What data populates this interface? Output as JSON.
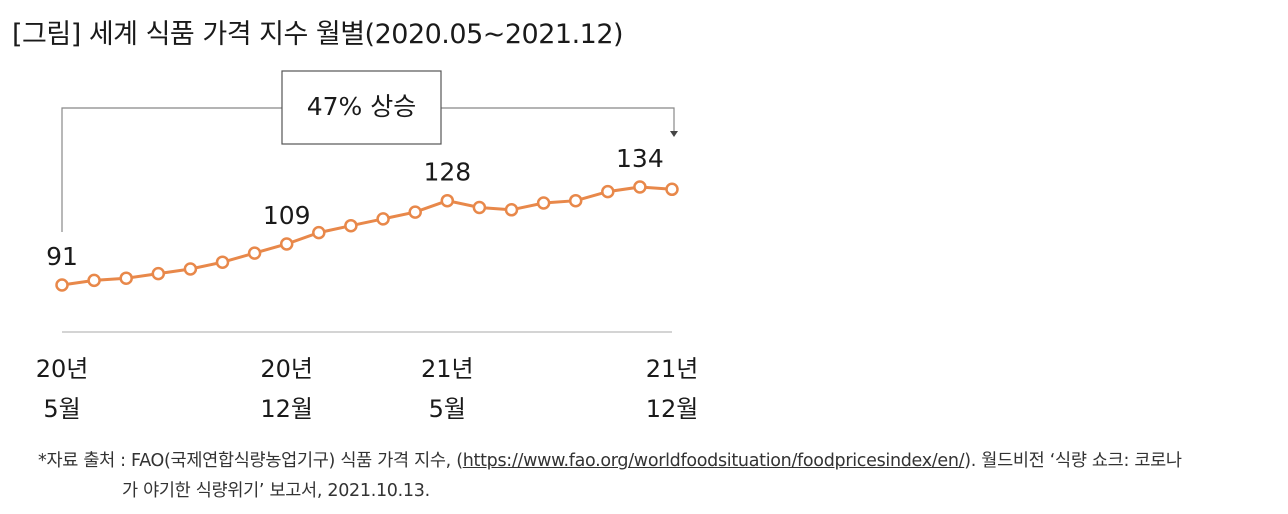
{
  "title": "[그림] 세계 식품 가격 지수 월별(2020.05~2021.12)",
  "annotation": "47% 상승",
  "chart_data": {
    "type": "line",
    "x": [
      "2020-05",
      "2020-06",
      "2020-07",
      "2020-08",
      "2020-09",
      "2020-10",
      "2020-11",
      "2020-12",
      "2021-01",
      "2021-02",
      "2021-03",
      "2021-04",
      "2021-05",
      "2021-06",
      "2021-07",
      "2021-08",
      "2021-09",
      "2021-10",
      "2021-11",
      "2021-12"
    ],
    "values": [
      91,
      93,
      94,
      96,
      98,
      101,
      105,
      109,
      114,
      117,
      120,
      123,
      128,
      125,
      124,
      127,
      128,
      132,
      134,
      133
    ],
    "value_labels": [
      {
        "index": 0,
        "text": "91"
      },
      {
        "index": 7,
        "text": "109"
      },
      {
        "index": 12,
        "text": "128"
      },
      {
        "index": 18,
        "text": "134"
      }
    ],
    "tick_labels": [
      {
        "index": 0,
        "line1": "20년",
        "line2": "5월"
      },
      {
        "index": 7,
        "line1": "20년",
        "line2": "12월"
      },
      {
        "index": 12,
        "line1": "21년",
        "line2": "5월"
      },
      {
        "index": 19,
        "line1": "21년",
        "line2": "12월"
      }
    ],
    "line_color": "#e8884a",
    "axis_color": "#bbbbbb"
  },
  "source": {
    "line1_prefix": "*자료 출처 : FAO(국제연합식량농업기구) 식품 가격 지수, (",
    "url": "https://www.fao.org/worldfoodsituation/foodpricesindex/en/",
    "line1_suffix": "). 월드비전 ‘식량 쇼크: 코로나",
    "line2": "가 야기한 식량위기’ 보고서, 2021.10.13."
  }
}
